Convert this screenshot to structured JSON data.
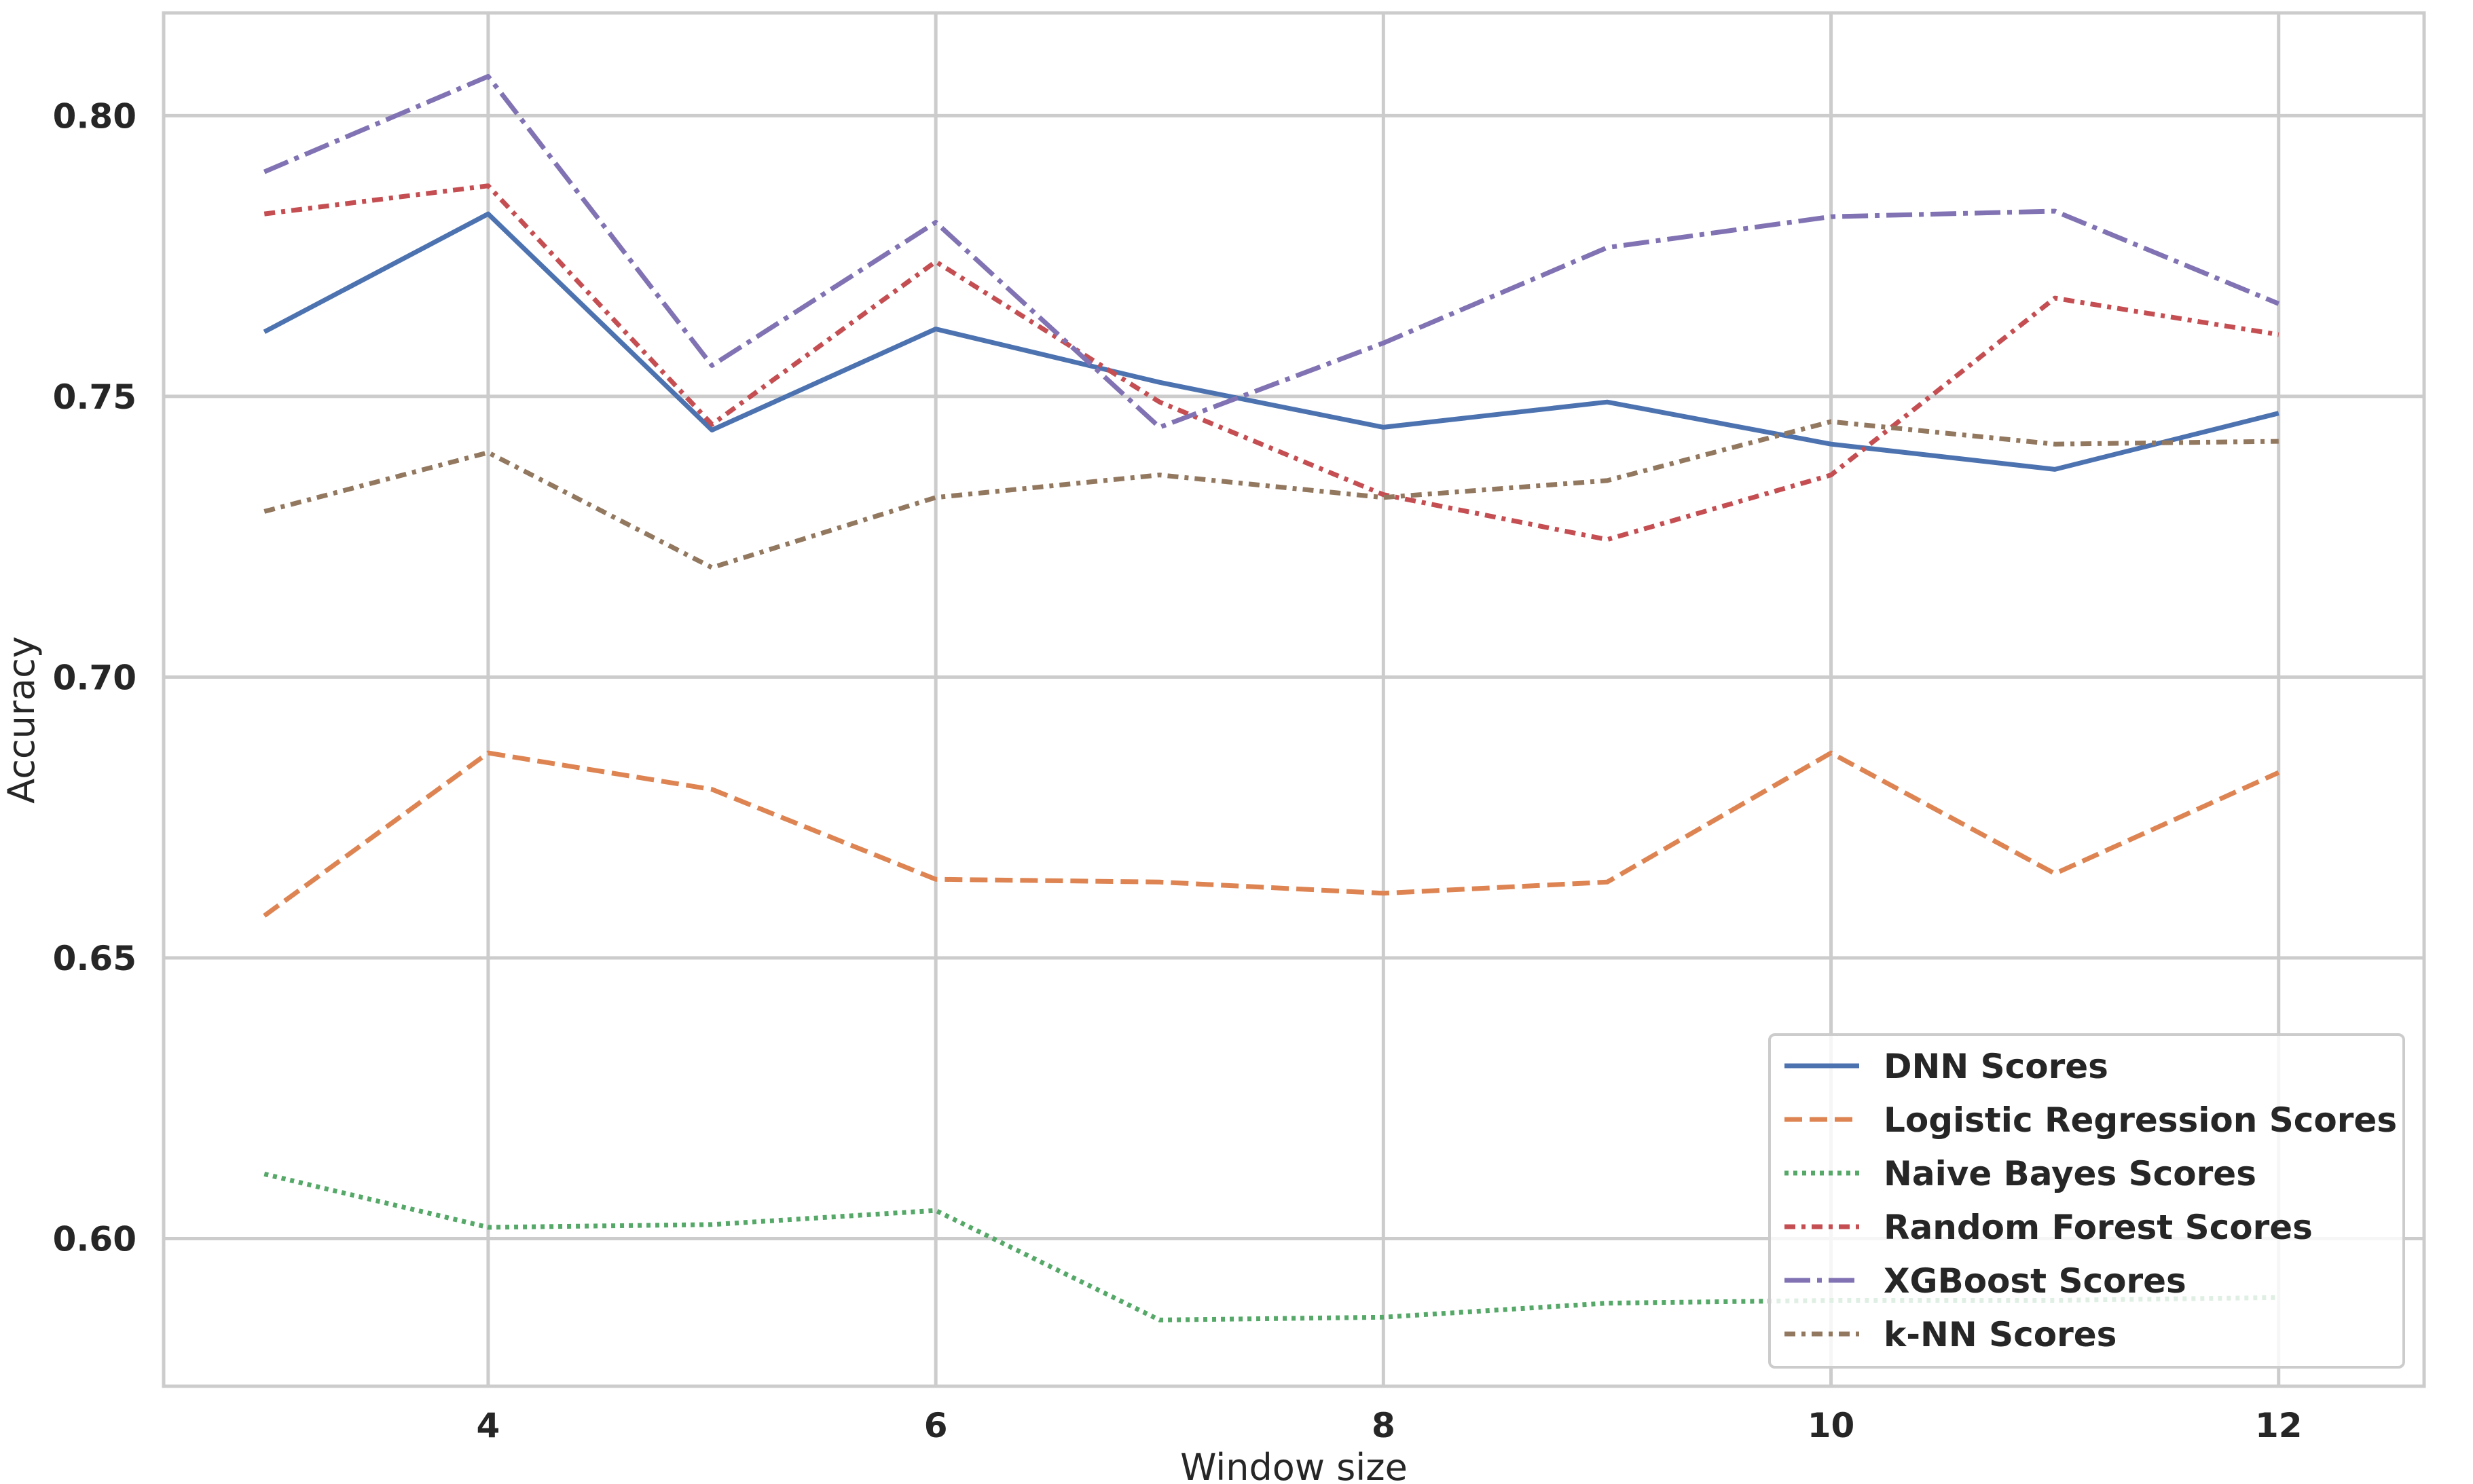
{
  "chart_data": {
    "type": "line",
    "xlabel": "Window size",
    "ylabel": "Accuracy",
    "xlim": [
      2.55,
      12.65
    ],
    "ylim": [
      0.5737,
      0.8183
    ],
    "xticks": [
      4,
      6,
      8,
      10,
      12
    ],
    "yticks": [
      0.6,
      0.65,
      0.7,
      0.75,
      0.8
    ],
    "ytick_labels": [
      "0.60",
      "0.65",
      "0.70",
      "0.75",
      "0.80"
    ],
    "grid": true,
    "legend_position": "lower-right",
    "x": [
      3,
      4,
      5,
      6,
      7,
      8,
      9,
      10,
      11,
      12
    ],
    "series": [
      {
        "name": "DNN Scores",
        "color": "#4c72b0",
        "dash": "solid",
        "values": [
          0.7615,
          0.7825,
          0.744,
          0.762,
          0.7525,
          0.7445,
          0.749,
          0.7415,
          0.737,
          0.747
        ]
      },
      {
        "name": "Logistic Regression Scores",
        "color": "#dd8452",
        "dash": "dashed",
        "values": [
          0.6575,
          0.6865,
          0.68,
          0.664,
          0.6635,
          0.6615,
          0.6635,
          0.6865,
          0.665,
          0.683
        ]
      },
      {
        "name": "Naive Bayes Scores",
        "color": "#55a868",
        "dash": "dotted",
        "values": [
          0.6115,
          0.602,
          0.6025,
          0.605,
          0.5855,
          0.586,
          0.5885,
          0.589,
          0.589,
          0.5895
        ]
      },
      {
        "name": "Random Forest Scores",
        "color": "#c44e52",
        "dash": "dashdot-dense",
        "values": [
          0.7825,
          0.7875,
          0.745,
          0.774,
          0.749,
          0.7325,
          0.7245,
          0.736,
          0.7675,
          0.761
        ]
      },
      {
        "name": "XGBoost Scores",
        "color": "#8172b3",
        "dash": "dashdot",
        "values": [
          0.79,
          0.807,
          0.7555,
          0.781,
          0.7445,
          0.7595,
          0.7765,
          0.782,
          0.783,
          0.7665
        ]
      },
      {
        "name": "k-NN Scores",
        "color": "#937860",
        "dash": "dashdot-dense",
        "values": [
          0.7295,
          0.74,
          0.7195,
          0.732,
          0.736,
          0.732,
          0.735,
          0.7455,
          0.7415,
          0.742
        ]
      }
    ]
  }
}
